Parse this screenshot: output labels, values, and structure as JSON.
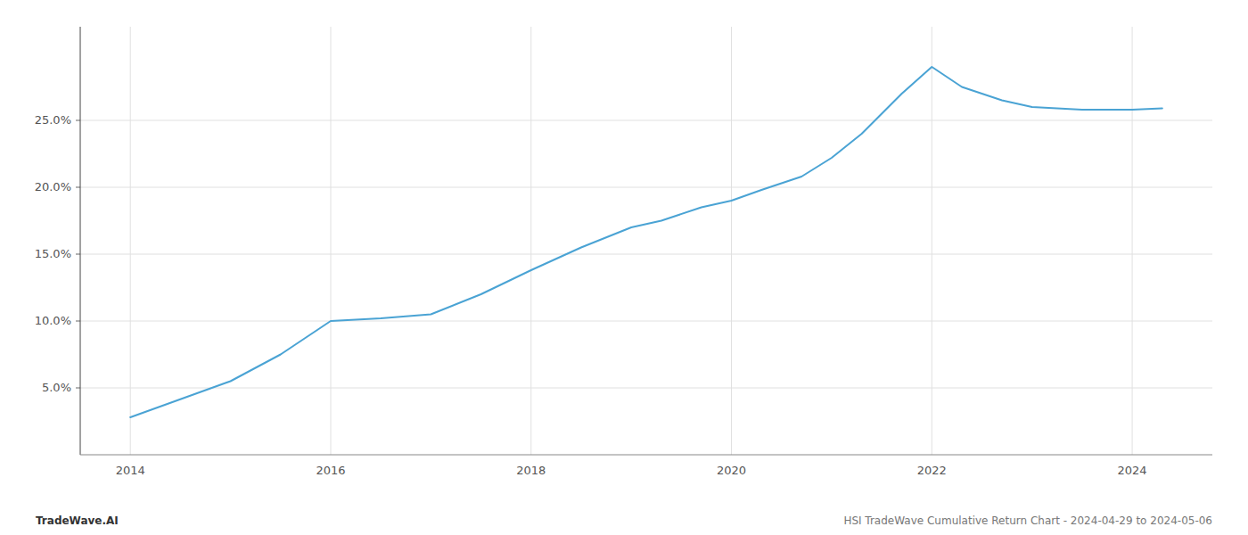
{
  "chart_data": {
    "type": "line",
    "title": "HSI TradeWave Cumulative Return Chart - 2024-04-29 to 2024-05-06",
    "annotations": [
      "TradeWave.AI"
    ],
    "x": [
      2014,
      2015,
      2015.5,
      2016,
      2016.5,
      2017,
      2017.5,
      2018,
      2018.5,
      2019,
      2019.3,
      2019.7,
      2020,
      2020.3,
      2020.7,
      2021,
      2021.3,
      2021.7,
      2022,
      2022.3,
      2022.7,
      2023,
      2023.5,
      2024,
      2024.3
    ],
    "values": [
      2.8,
      5.5,
      7.5,
      10.0,
      10.2,
      10.5,
      12.0,
      13.8,
      15.5,
      17.0,
      17.5,
      18.5,
      19.0,
      19.8,
      20.8,
      22.2,
      24.0,
      27.0,
      29.0,
      27.5,
      26.5,
      26.0,
      25.8,
      25.8,
      25.9
    ],
    "color": "#4aa3d4",
    "xlim": [
      2013.5,
      2024.8
    ],
    "ylim": [
      0,
      32
    ],
    "xticks": [
      2014,
      2016,
      2018,
      2020,
      2022,
      2024
    ],
    "yticks": [
      {
        "value": 5.0,
        "label": "5.0%"
      },
      {
        "value": 10.0,
        "label": "10.0%"
      },
      {
        "value": 15.0,
        "label": "15.0%"
      },
      {
        "value": 20.0,
        "label": "20.0%"
      },
      {
        "value": 25.0,
        "label": "25.0%"
      }
    ],
    "grid": true
  }
}
